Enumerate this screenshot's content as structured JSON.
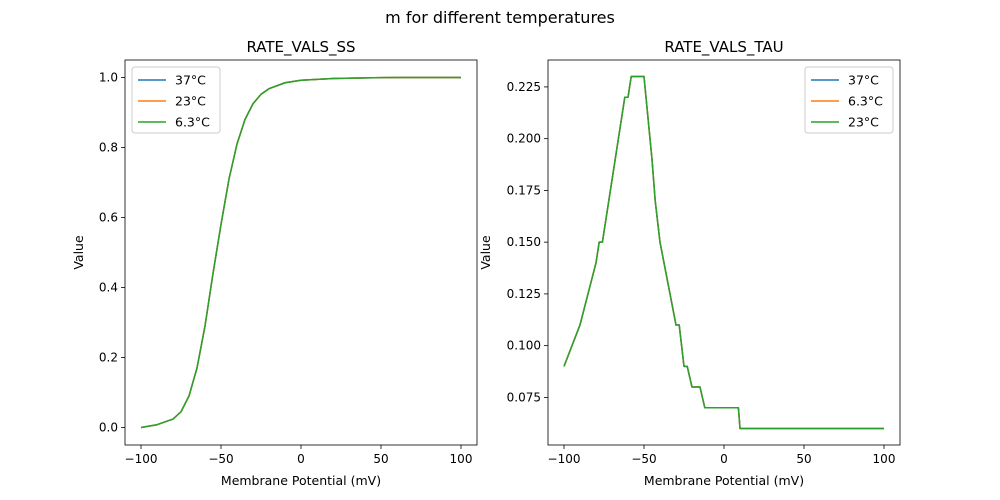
{
  "figure": {
    "suptitle": "m for different temperatures"
  },
  "chart_data": [
    {
      "type": "line",
      "title": "RATE_VALS_SS",
      "xlabel": "Membrane Potential (mV)",
      "ylabel": "Value",
      "xlim": [
        -110,
        110
      ],
      "ylim": [
        -0.05,
        1.05
      ],
      "xticks": [
        -100,
        -50,
        0,
        50,
        100
      ],
      "yticks": [
        0.0,
        0.2,
        0.4,
        0.6,
        0.8,
        1.0
      ],
      "xtick_labels": [
        "−100",
        "−50",
        "0",
        "50",
        "100"
      ],
      "ytick_labels": [
        "0.0",
        "0.2",
        "0.4",
        "0.6",
        "0.8",
        "1.0"
      ],
      "grid": false,
      "legend_position": "upper-left",
      "series": [
        {
          "name": "37°C",
          "color": "#1f77b4",
          "x": [
            -100,
            -90,
            -80,
            -75,
            -70,
            -65,
            -60,
            -55,
            -50,
            -45,
            -40,
            -35,
            -30,
            -25,
            -20,
            -10,
            0,
            20,
            40,
            60,
            80,
            100
          ],
          "y": [
            0.0,
            0.008,
            0.024,
            0.045,
            0.09,
            0.17,
            0.29,
            0.44,
            0.58,
            0.71,
            0.81,
            0.88,
            0.925,
            0.952,
            0.968,
            0.985,
            0.992,
            0.997,
            0.999,
            1.0,
            1.0,
            1.0
          ]
        },
        {
          "name": "23°C",
          "color": "#ff7f0e",
          "x": [
            -100,
            -90,
            -80,
            -75,
            -70,
            -65,
            -60,
            -55,
            -50,
            -45,
            -40,
            -35,
            -30,
            -25,
            -20,
            -10,
            0,
            20,
            40,
            60,
            80,
            100
          ],
          "y": [
            0.0,
            0.008,
            0.024,
            0.045,
            0.09,
            0.17,
            0.29,
            0.44,
            0.58,
            0.71,
            0.81,
            0.88,
            0.925,
            0.952,
            0.968,
            0.985,
            0.992,
            0.997,
            0.999,
            1.0,
            1.0,
            1.0
          ]
        },
        {
          "name": "6.3°C",
          "color": "#2ca02c",
          "x": [
            -100,
            -90,
            -80,
            -75,
            -70,
            -65,
            -60,
            -55,
            -50,
            -45,
            -40,
            -35,
            -30,
            -25,
            -20,
            -10,
            0,
            20,
            40,
            60,
            80,
            100
          ],
          "y": [
            0.0,
            0.008,
            0.024,
            0.045,
            0.09,
            0.17,
            0.29,
            0.44,
            0.58,
            0.71,
            0.81,
            0.88,
            0.925,
            0.952,
            0.968,
            0.985,
            0.992,
            0.997,
            0.999,
            1.0,
            1.0,
            1.0
          ]
        }
      ]
    },
    {
      "type": "line",
      "title": "RATE_VALS_TAU",
      "xlabel": "Membrane Potential (mV)",
      "ylabel": "Value",
      "xlim": [
        -110,
        110
      ],
      "ylim": [
        0.052,
        0.238
      ],
      "xticks": [
        -100,
        -50,
        0,
        50,
        100
      ],
      "yticks": [
        0.075,
        0.1,
        0.125,
        0.15,
        0.175,
        0.2,
        0.225
      ],
      "xtick_labels": [
        "−100",
        "−50",
        "0",
        "50",
        "100"
      ],
      "ytick_labels": [
        "0.075",
        "0.100",
        "0.125",
        "0.150",
        "0.175",
        "0.200",
        "0.225"
      ],
      "grid": false,
      "legend_position": "upper-right",
      "series": [
        {
          "name": "37°C",
          "color": "#1f77b4",
          "x": [
            -100,
            -90,
            -80,
            -78,
            -76,
            -62,
            -60,
            -58,
            -50,
            -45,
            -43,
            -40,
            -30,
            -28,
            -25,
            -23,
            -20,
            -15,
            -12,
            -10,
            9,
            10,
            100
          ],
          "y": [
            0.09,
            0.11,
            0.14,
            0.15,
            0.15,
            0.22,
            0.22,
            0.23,
            0.23,
            0.19,
            0.17,
            0.15,
            0.11,
            0.11,
            0.09,
            0.09,
            0.08,
            0.08,
            0.07,
            0.07,
            0.07,
            0.06,
            0.06
          ]
        },
        {
          "name": "6.3°C",
          "color": "#ff7f0e",
          "x": [
            -100,
            -90,
            -80,
            -78,
            -76,
            -62,
            -60,
            -58,
            -50,
            -45,
            -43,
            -40,
            -30,
            -28,
            -25,
            -23,
            -20,
            -15,
            -12,
            -10,
            9,
            10,
            100
          ],
          "y": [
            0.09,
            0.11,
            0.14,
            0.15,
            0.15,
            0.22,
            0.22,
            0.23,
            0.23,
            0.19,
            0.17,
            0.15,
            0.11,
            0.11,
            0.09,
            0.09,
            0.08,
            0.08,
            0.07,
            0.07,
            0.07,
            0.06,
            0.06
          ]
        },
        {
          "name": "23°C",
          "color": "#2ca02c",
          "x": [
            -100,
            -90,
            -80,
            -78,
            -76,
            -62,
            -60,
            -58,
            -50,
            -45,
            -43,
            -40,
            -30,
            -28,
            -25,
            -23,
            -20,
            -15,
            -12,
            -10,
            9,
            10,
            100
          ],
          "y": [
            0.09,
            0.11,
            0.14,
            0.15,
            0.15,
            0.22,
            0.22,
            0.23,
            0.23,
            0.19,
            0.17,
            0.15,
            0.11,
            0.11,
            0.09,
            0.09,
            0.08,
            0.08,
            0.07,
            0.07,
            0.07,
            0.06,
            0.06
          ]
        }
      ]
    }
  ]
}
